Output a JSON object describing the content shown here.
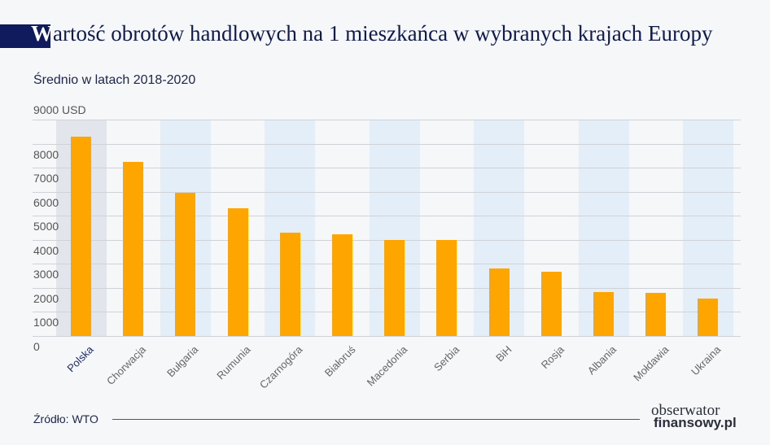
{
  "header": {
    "title_first_letter": "W",
    "title_rest": "artość obrotów handlowych na 1 mieszkańca w wybranych krajach Europy",
    "subtitle": "Średnio w latach 2018-2020",
    "unit_label": "9000 USD"
  },
  "footer": {
    "source": "Źródło: WTO",
    "logo_line1": "obserwator",
    "logo_line2": "finansowy.pl"
  },
  "colors": {
    "bar": "#ffa500",
    "title_block": "#0f1b5c",
    "band_blue": "#e4eef8",
    "band_highlight": "#e2e5eb"
  },
  "y_ticks": [
    "8000",
    "7000",
    "6000",
    "5000",
    "4000",
    "3000",
    "2000",
    "1000",
    "0"
  ],
  "chart_data": {
    "type": "bar",
    "title": "Wartość obrotów handlowych na 1 mieszkańca w wybranych krajach Europy",
    "subtitle": "Średnio w latach 2018-2020",
    "xlabel": "",
    "ylabel": "USD",
    "ylim": [
      0,
      9000
    ],
    "yticks": [
      0,
      1000,
      2000,
      3000,
      4000,
      5000,
      6000,
      7000,
      8000,
      9000
    ],
    "grid": true,
    "legend": "none",
    "categories": [
      "Polska",
      "Chorwacja",
      "Bułgaria",
      "Rumunia",
      "Czarnogóra",
      "Białoruś",
      "Macedonia",
      "Serbia",
      "BiH",
      "Rosja",
      "Albania",
      "Mołdawia",
      "Ukraina"
    ],
    "values": [
      8280,
      7230,
      5950,
      5300,
      4290,
      4220,
      3990,
      3990,
      2800,
      2670,
      1820,
      1790,
      1550
    ],
    "highlighted_category": "Polska",
    "source": "Źródło: WTO"
  }
}
